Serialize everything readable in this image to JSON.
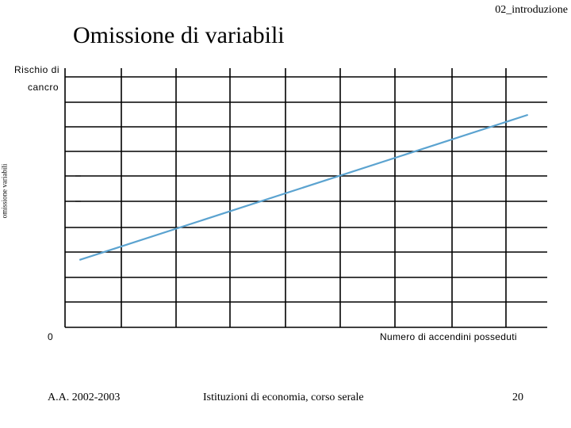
{
  "header": {
    "tag": "02_introduzione",
    "title": "Omissione di variabili"
  },
  "side_label": "omissione variabili",
  "chart_data": {
    "type": "line",
    "ylabel_line1": "Rischio di",
    "ylabel_line2": "cancro",
    "x_origin_label": "0",
    "xlabel": "Numero di accendini posseduti",
    "grid": true,
    "line_color": "#5BA3D0",
    "series": [
      {
        "x": [
          0.03,
          0.96
        ],
        "y": [
          0.26,
          0.82
        ]
      }
    ]
  },
  "footer": {
    "left": "A.A. 2002-2003",
    "center": "Istituzioni di economia, corso serale",
    "page": "20"
  }
}
